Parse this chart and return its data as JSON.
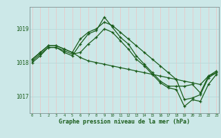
{
  "background_color": "#cce8e8",
  "grid_color_v": "#e8c8c8",
  "grid_color_h": "#b8d8d8",
  "line_color": "#1a5c1a",
  "ylim": [
    1016.5,
    1019.65
  ],
  "yticks": [
    1017,
    1018,
    1019
  ],
  "xlabel": "Graphe pression niveau de la mer (hPa)",
  "series": [
    [
      1018.1,
      1018.3,
      1018.5,
      1018.5,
      1018.4,
      1018.3,
      1018.7,
      1018.9,
      1019.0,
      1019.2,
      1019.1,
      1018.9,
      1018.7,
      1018.5,
      1018.3,
      1018.1,
      1017.9,
      1017.7,
      1017.5,
      1016.9,
      1016.95,
      1017.05,
      1017.55,
      1017.7
    ],
    [
      1018.0,
      1018.2,
      1018.45,
      1018.45,
      1018.3,
      1018.2,
      1018.55,
      1018.85,
      1018.95,
      1019.35,
      1019.05,
      1018.75,
      1018.55,
      1018.2,
      1017.95,
      1017.7,
      1017.45,
      1017.3,
      1017.3,
      1017.3,
      1017.35,
      1017.1,
      1017.6,
      1017.75
    ],
    [
      1018.05,
      1018.25,
      1018.45,
      1018.45,
      1018.35,
      1018.25,
      1018.3,
      1018.55,
      1018.75,
      1019.0,
      1018.9,
      1018.65,
      1018.4,
      1018.1,
      1017.9,
      1017.65,
      1017.4,
      1017.25,
      1017.2,
      1016.7,
      1016.9,
      1016.85,
      1017.35,
      1017.65
    ],
    [
      1018.1,
      1018.3,
      1018.5,
      1018.5,
      1018.4,
      1018.3,
      1018.15,
      1018.05,
      1018.0,
      1017.95,
      1017.9,
      1017.85,
      1017.8,
      1017.75,
      1017.7,
      1017.65,
      1017.6,
      1017.55,
      1017.5,
      1017.45,
      1017.4,
      1017.35,
      1017.6,
      1017.7
    ]
  ]
}
